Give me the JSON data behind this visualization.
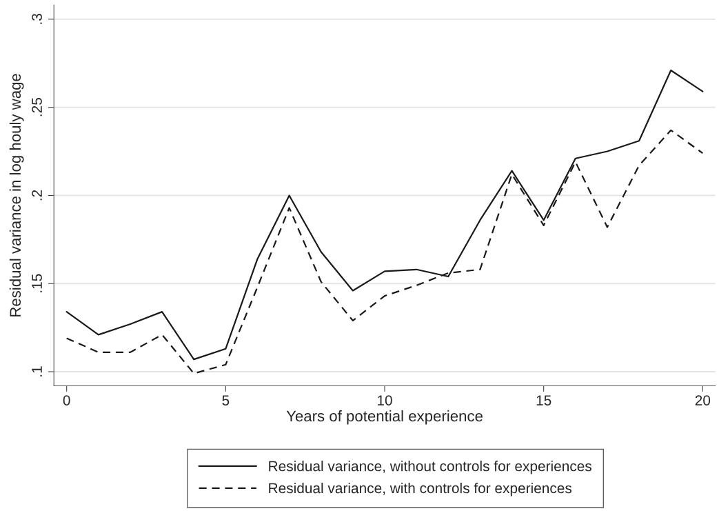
{
  "chart_data": {
    "type": "line",
    "xlabel": "Years of potential experience",
    "ylabel": "Residual variance in log houly wage",
    "x": [
      0,
      1,
      2,
      3,
      4,
      5,
      6,
      7,
      8,
      9,
      10,
      11,
      12,
      13,
      14,
      15,
      16,
      17,
      18,
      19,
      20
    ],
    "series": [
      {
        "name": "Residual variance, without controls for experiences",
        "color": "#1a1a1a",
        "line_style": "solid",
        "values": [
          0.134,
          0.121,
          0.127,
          0.134,
          0.107,
          0.113,
          0.164,
          0.2,
          0.168,
          0.146,
          0.157,
          0.158,
          0.154,
          0.186,
          0.214,
          0.186,
          0.221,
          0.225,
          0.231,
          0.271,
          0.259
        ]
      },
      {
        "name": "Residual variance, with controls for experiences",
        "color": "#1a1a1a",
        "line_style": "dashed",
        "values": [
          0.119,
          0.111,
          0.111,
          0.121,
          0.099,
          0.104,
          0.148,
          0.193,
          0.151,
          0.129,
          0.143,
          0.149,
          0.156,
          0.158,
          0.212,
          0.183,
          0.219,
          0.182,
          0.217,
          0.237,
          0.224
        ]
      }
    ],
    "xlim": [
      -0.4,
      20.4
    ],
    "ylim": [
      0.092,
      0.308
    ],
    "xticks": [
      0,
      5,
      10,
      15,
      20
    ],
    "yticks": [
      {
        "value": 0.1,
        "label": ".1"
      },
      {
        "value": 0.15,
        "label": ".15"
      },
      {
        "value": 0.2,
        "label": ".2"
      },
      {
        "value": 0.25,
        "label": ".25"
      },
      {
        "value": 0.3,
        "label": ".3"
      }
    ],
    "grid": "y",
    "legend": "bottom"
  }
}
